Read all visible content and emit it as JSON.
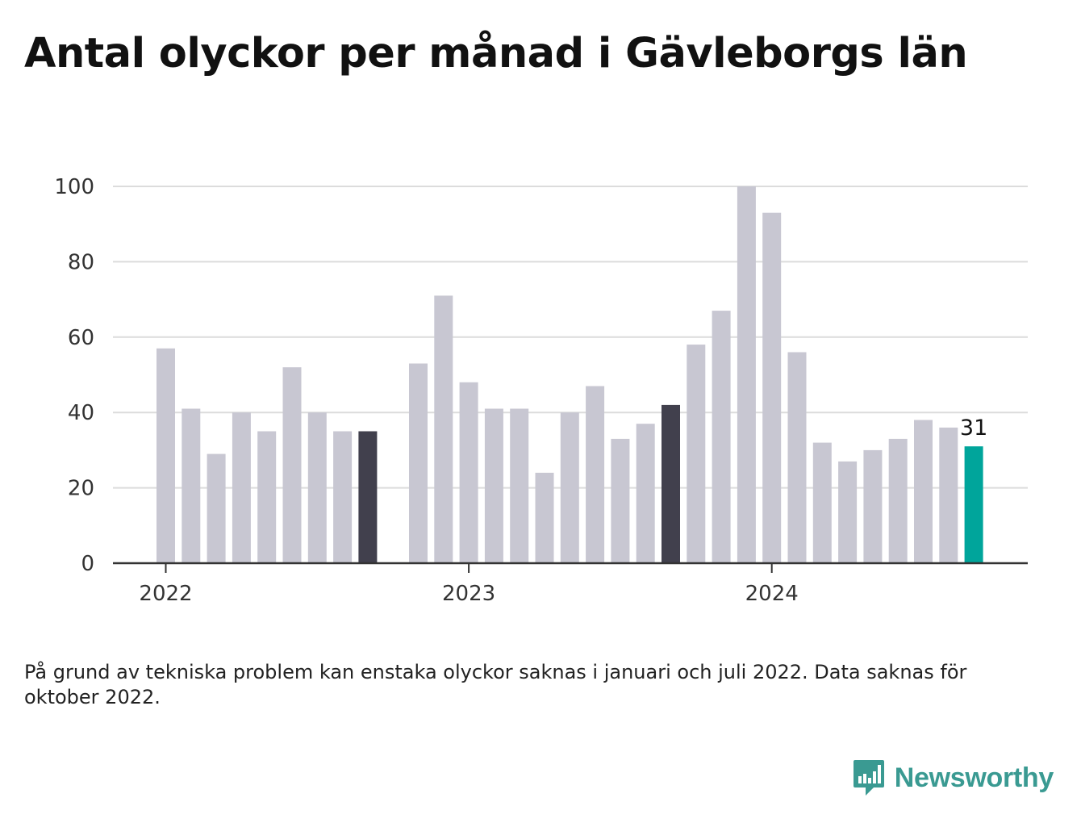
{
  "title": "Antal olyckor per månad i Gävleborgs län",
  "note": "På grund av tekniska problem kan enstaka olyckor saknas i januari och juli 2022. Data saknas för oktober 2022.",
  "brand": {
    "name": "Newsworthy",
    "color": "#3a9a92"
  },
  "chart_data": {
    "type": "bar",
    "ylim": [
      0,
      100
    ],
    "yticks": [
      0,
      20,
      40,
      60,
      80,
      100
    ],
    "grid": true,
    "x_tick_labels": [
      {
        "label": "2022",
        "at": "2022-01"
      },
      {
        "label": "2023",
        "at": "2023-01"
      },
      {
        "label": "2024",
        "at": "2024-01"
      }
    ],
    "colors": {
      "default": "#c8c7d2",
      "highlight": "#41404d",
      "latest": "#00a59b",
      "grid": "#dcdcdc",
      "axis": "#333333"
    },
    "categories": [
      "2022-01",
      "2022-02",
      "2022-03",
      "2022-04",
      "2022-05",
      "2022-06",
      "2022-07",
      "2022-08",
      "2022-09",
      "2022-10",
      "2022-11",
      "2022-12",
      "2023-01",
      "2023-02",
      "2023-03",
      "2023-04",
      "2023-05",
      "2023-06",
      "2023-07",
      "2023-08",
      "2023-09",
      "2023-10",
      "2023-11",
      "2023-12",
      "2024-01",
      "2024-02",
      "2024-03",
      "2024-04",
      "2024-05",
      "2024-06",
      "2024-07",
      "2024-08",
      "2024-09",
      "2024-10"
    ],
    "values": [
      57,
      41,
      29,
      40,
      35,
      52,
      40,
      35,
      35,
      null,
      53,
      71,
      48,
      41,
      41,
      24,
      40,
      47,
      33,
      37,
      42,
      58,
      67,
      100,
      93,
      56,
      32,
      27,
      30,
      33,
      38,
      36,
      31,
      null
    ],
    "highlight_months": [
      "2022-09",
      "2023-09"
    ],
    "latest_month": "2024-09",
    "data_labels": [
      {
        "category": "2024-09",
        "text": "31"
      }
    ]
  }
}
